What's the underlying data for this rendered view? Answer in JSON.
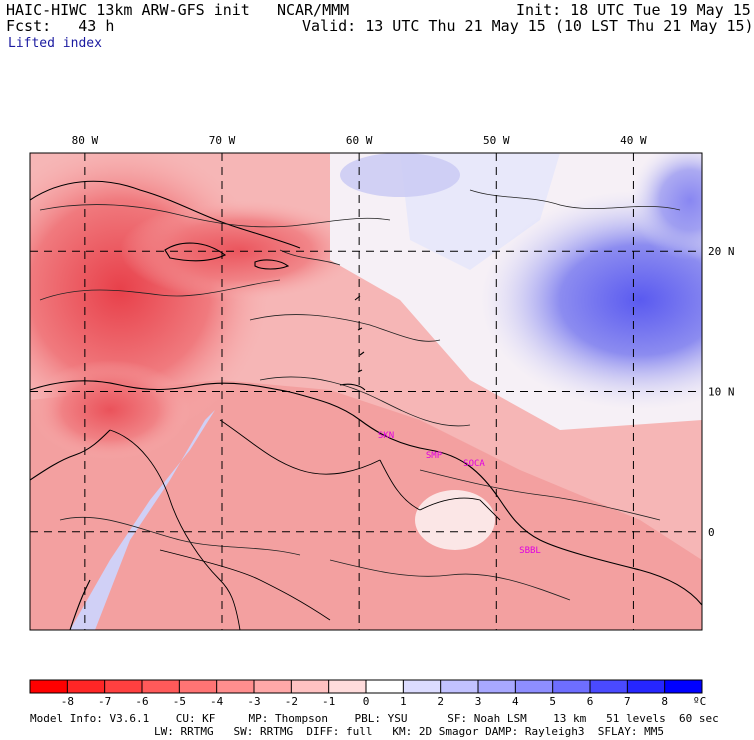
{
  "header": {
    "model_title": "HAIC-HIWC 13km ARW-GFS init",
    "org": "NCAR/MMM",
    "init": "Init: 18 UTC Tue 19 May 15",
    "fcst_label": "Fcst:",
    "fcst_value": "43 h",
    "valid": "Valid: 13 UTC Thu 21 May 15 (10 LST Thu 21 May 15)",
    "field": "Lifted index"
  },
  "map": {
    "lon_labels": [
      "80 W",
      "70 W",
      "60 W",
      "50 W",
      "40 W"
    ],
    "lat_labels": [
      "20 N",
      "10 N",
      "0"
    ],
    "lon_range": [
      -84,
      -35
    ],
    "lat_range": [
      -7,
      27
    ],
    "stations": [
      "SKN",
      "SMP",
      "SOCA",
      "SBBL"
    ],
    "colors": {
      "negative_strong": "#e8404a",
      "negative_mid": "#f07a7e",
      "negative_weak": "#f8c8c6",
      "neutral": "#ffffff",
      "positive_weak": "#dcdcf6",
      "positive_mid": "#8c8cf0",
      "positive_strong": "#4a4ae8",
      "station": "#e000e0"
    }
  },
  "colorbar": {
    "ticks": [
      "-8",
      "-7",
      "-6",
      "-5",
      "-4",
      "-3",
      "-2",
      "-1",
      "0",
      "1",
      "2",
      "3",
      "4",
      "5",
      "6",
      "7",
      "8"
    ],
    "unit": "ºC",
    "colors": [
      "#ff0000",
      "#ff2626",
      "#ff4040",
      "#ff5a5a",
      "#ff7474",
      "#ff8e8e",
      "#ffa8a8",
      "#ffc2c2",
      "#ffdcdc",
      "#ffffff",
      "#dcdcff",
      "#c2c2ff",
      "#a8a8ff",
      "#8e8eff",
      "#6e6eff",
      "#4a4aff",
      "#2626ff",
      "#0000ff"
    ]
  },
  "footer": {
    "line1": "Model Info: V3.6.1    CU: KF     MP: Thompson    PBL: YSU      SF: Noah LSM    13 km   51 levels  60 sec",
    "line2": "LW: RRTMG   SW: RRTMG  DIFF: full   KM: 2D Smagor DAMP: Rayleigh3  SFLAY: MM5"
  }
}
